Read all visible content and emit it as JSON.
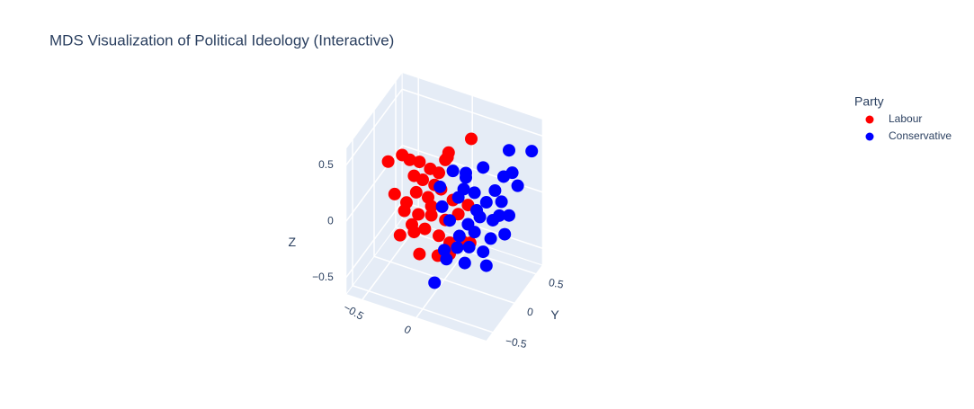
{
  "chart_data": {
    "type": "scatter3d",
    "title": "MDS Visualization of Political Ideology (Interactive)",
    "legend_title": "Party",
    "ylabel": "Y",
    "zlabel": "Z",
    "xlim": [
      -0.65,
      0.65
    ],
    "ylim": [
      -0.65,
      0.65
    ],
    "zlim": [
      -0.65,
      0.65
    ],
    "xticks": [
      {
        "value": -0.5,
        "label": "−0.5"
      },
      0
    ],
    "yticks": [
      {
        "value": -0.5,
        "label": "−0.5"
      },
      0,
      0.5
    ],
    "zticks": [
      {
        "value": -0.5,
        "label": "−0.5"
      },
      0,
      0.5
    ],
    "series": [
      {
        "name": "Labour",
        "color": "#ff0000",
        "x": [
          -0.4,
          -0.27,
          -0.2,
          -0.11,
          -0.01,
          0.07,
          -0.08,
          0.13,
          -0.16,
          -0.08,
          0.03,
          0.03,
          -0.34,
          -0.14,
          -0.03,
          0.09,
          0.2,
          -0.25,
          -0.12,
          0.0,
          0.13,
          0.25,
          0.34,
          -0.18,
          -0.06,
          -0.29,
          -0.16,
          0.07,
          0.17,
          0.29,
          0.36,
          -0.11,
          0.06,
          0.17,
          0.01,
          -0.23,
          0.0
        ],
        "y": [
          -0.3,
          -0.3,
          -0.3,
          -0.3,
          -0.3,
          -0.3,
          0.3,
          0.3,
          -0.3,
          -0.3,
          -0.3,
          0,
          -0.3,
          -0.3,
          -0.3,
          -0.3,
          -0.3,
          -0.3,
          -0.3,
          -0.3,
          -0.3,
          -0.3,
          -0.3,
          -0.3,
          -0.3,
          -0.3,
          -0.3,
          -0.3,
          -0.3,
          -0.3,
          -0.3,
          -0.3,
          -0.3,
          -0.3,
          0,
          -0.3,
          -0.3
        ],
        "z": [
          0.43,
          0.53,
          0.51,
          0.52,
          0.49,
          0.48,
          0.3,
          0.49,
          0.38,
          0.37,
          0.36,
          0.45,
          0.16,
          0.24,
          0.23,
          0.34,
          0.28,
          0.04,
          0.05,
          0.08,
          0.08,
          0.17,
          0.28,
          -0.06,
          -0.06,
          -0.19,
          -0.12,
          -0.08,
          -0.11,
          -0.06,
          -0.05,
          -0.3,
          -0.26,
          -0.21,
          0.42,
          0.12,
          0.16
        ]
      },
      {
        "name": "Conservative",
        "color": "#0000ff",
        "x": [
          0.48,
          0.61,
          -0.04,
          0.08,
          0.24,
          0.43,
          0.51,
          0.56,
          0.06,
          0.16,
          0.27,
          0.41,
          -0.16,
          0.01,
          0.18,
          0.33,
          0.48,
          0.39,
          0.21,
          0.1,
          -0.14,
          -0.07,
          0.02,
          0.16,
          0.31,
          0.44,
          -0.12,
          0.0,
          0.11,
          0.24,
          0.02,
          0.19,
          0.39,
          0.03,
          0.08,
          0.35
        ],
        "y": [
          0.3,
          0.5,
          0.3,
          0.3,
          0.3,
          0.3,
          0.3,
          0.3,
          0.3,
          0.3,
          0.3,
          0.3,
          0.3,
          0.3,
          0.3,
          0.3,
          0.3,
          0.3,
          0.3,
          0.3,
          0.3,
          0.3,
          0.3,
          0.3,
          0.3,
          0.3,
          0.3,
          0.3,
          0.3,
          0.3,
          0,
          0,
          0,
          -0.3,
          0.3,
          0.3
        ],
        "z": [
          0.5,
          0.43,
          0.15,
          0.17,
          0.27,
          0.25,
          0.31,
          0.21,
          0.02,
          0.02,
          -0.03,
          0.02,
          -0.03,
          -0.07,
          -0.13,
          -0.17,
          -0.08,
          -0.11,
          -0.18,
          -0.28,
          -0.2,
          -0.3,
          -0.41,
          -0.33,
          -0.34,
          -0.26,
          -0.58,
          -0.52,
          -0.48,
          -0.48,
          -0.46,
          -0.44,
          -0.4,
          -0.51,
          0.13,
          0.1
        ]
      }
    ]
  }
}
